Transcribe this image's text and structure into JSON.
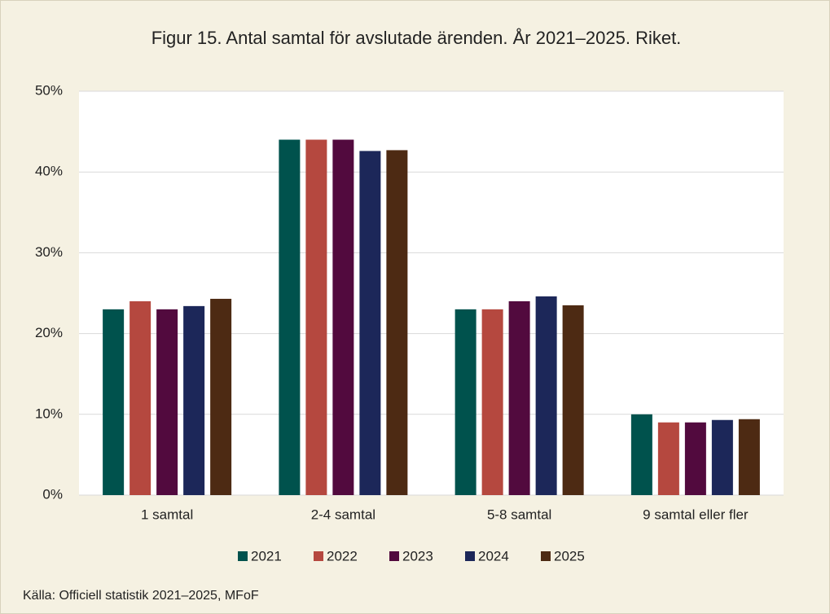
{
  "chart_data": {
    "type": "bar",
    "title": "Figur 15. Antal samtal för avslutade ärenden. År 2021–2025. Riket.",
    "categories": [
      "1 samtal",
      "2-4 samtal",
      "5-8 samtal",
      "9 samtal eller fler"
    ],
    "series": [
      {
        "name": "2021",
        "color": "#00524d",
        "values": [
          23.0,
          44.0,
          23.0,
          10.0
        ]
      },
      {
        "name": "2022",
        "color": "#b5483f",
        "values": [
          24.0,
          44.0,
          23.0,
          9.0
        ]
      },
      {
        "name": "2023",
        "color": "#520a3e",
        "values": [
          23.0,
          44.0,
          24.0,
          9.0
        ]
      },
      {
        "name": "2024",
        "color": "#1c2759",
        "values": [
          23.4,
          42.6,
          24.6,
          9.3
        ]
      },
      {
        "name": "2025",
        "color": "#4d2a13",
        "values": [
          24.3,
          42.7,
          23.5,
          9.4
        ]
      }
    ],
    "ylim": [
      0,
      50
    ],
    "yticks": [
      {
        "value": 0,
        "label": "0%"
      },
      {
        "value": 10,
        "label": "10%"
      },
      {
        "value": 20,
        "label": "20%"
      },
      {
        "value": 30,
        "label": "30%"
      },
      {
        "value": 40,
        "label": "40%"
      },
      {
        "value": 50,
        "label": "50%"
      }
    ],
    "grid": true,
    "legend": "bottom",
    "source": "Källa: Officiell statistik 2021–2025, MFoF"
  }
}
